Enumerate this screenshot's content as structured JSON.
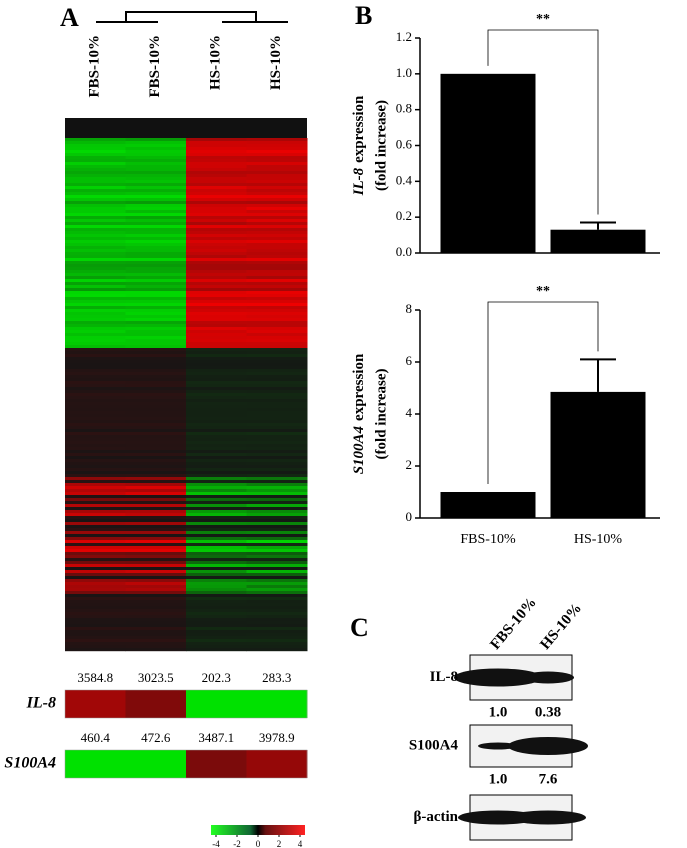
{
  "panel_labels": [
    "A",
    "B",
    "C"
  ],
  "heatmap": {
    "columns": [
      "FBS-10%",
      "FBS-10%",
      "HS-10%",
      "HS-10%"
    ],
    "genes": [
      {
        "name": "IL-8",
        "values": [
          3584.8,
          3023.5,
          202.3,
          283.3
        ]
      },
      {
        "name": "S100A4",
        "values": [
          460.4,
          472.6,
          3487.1,
          3978.9
        ]
      }
    ],
    "colorbar_ticks": [
      -4,
      -2,
      0,
      2,
      4
    ]
  },
  "chart_data": [
    {
      "type": "bar",
      "gene": "IL-8",
      "ylabel": "expression",
      "ylabel2": "(fold increase)",
      "categories": [
        null,
        null
      ],
      "values": [
        1.0,
        0.13
      ],
      "errors": [
        0,
        0.04
      ],
      "color": "#000000",
      "ylim": [
        0,
        1.2
      ],
      "yticks": [
        {
          "value": 0,
          "label": "0.0"
        },
        {
          "value": 0.2,
          "label": "0.2"
        },
        {
          "value": 0.4,
          "label": "0.4"
        },
        {
          "value": 0.6,
          "label": "0.6"
        },
        {
          "value": 0.8,
          "label": "0.8"
        },
        {
          "value": 1,
          "label": "1.0"
        },
        {
          "value": 1.2,
          "label": "1.2"
        }
      ],
      "significance": "**"
    },
    {
      "type": "bar",
      "gene": "S100A4",
      "ylabel": "expression",
      "ylabel2": "(fold increase)",
      "categories": [
        "FBS-10%",
        "HS-10%"
      ],
      "values": [
        1.0,
        4.85
      ],
      "errors": [
        0,
        1.25
      ],
      "color": "#000000",
      "ylim": [
        0,
        8
      ],
      "yticks": [
        0,
        2,
        4,
        6,
        8
      ],
      "significance": "**"
    }
  ],
  "blot": {
    "columns": [
      "FBS-10%",
      "HS-10%"
    ],
    "rows": [
      {
        "name": "IL-8",
        "values": [
          1.0,
          0.38
        ],
        "value_labels": [
          "1.0",
          "0.38"
        ]
      },
      {
        "name": "S100A4",
        "values": [
          1.0,
          7.6
        ],
        "value_labels": [
          "1.0",
          "7.6"
        ]
      },
      {
        "name": "β-actin"
      }
    ]
  }
}
